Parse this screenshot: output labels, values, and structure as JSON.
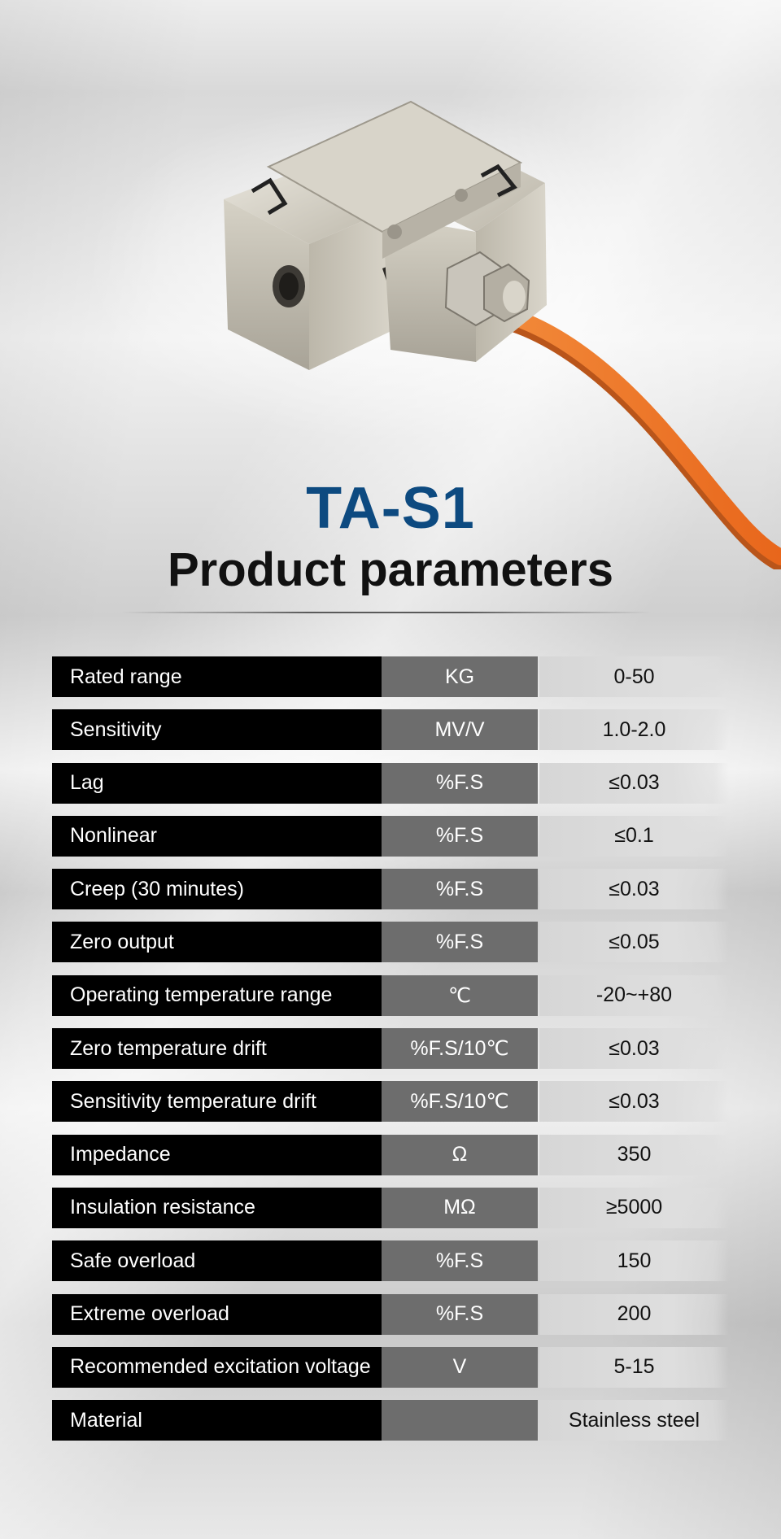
{
  "header": {
    "model": "TA-S1",
    "title": "Product parameters"
  },
  "colors": {
    "model_text": "#0d4a80",
    "name_cell_bg": "#000000",
    "unit_cell_bg": "#6d6d6d",
    "cable": "#f07a28"
  },
  "image": {
    "icon": "s-type-load-cell-icon"
  },
  "parameters": [
    {
      "name": "Rated range",
      "unit": "KG",
      "value": "0-50"
    },
    {
      "name": "Sensitivity",
      "unit": "MV/V",
      "value": "1.0-2.0"
    },
    {
      "name": "Lag",
      "unit": "%F.S",
      "value": "≤0.03"
    },
    {
      "name": "Nonlinear",
      "unit": "%F.S",
      "value": "≤0.1"
    },
    {
      "name": "Creep (30 minutes)",
      "unit": "%F.S",
      "value": "≤0.03"
    },
    {
      "name": "Zero output",
      "unit": "%F.S",
      "value": "≤0.05"
    },
    {
      "name": "Operating temperature range",
      "unit": "℃",
      "value": "-20~+80"
    },
    {
      "name": "Zero temperature drift",
      "unit": "%F.S/10℃",
      "value": "≤0.03"
    },
    {
      "name": "Sensitivity temperature drift",
      "unit": "%F.S/10℃",
      "value": "≤0.03"
    },
    {
      "name": "Impedance",
      "unit": "Ω",
      "value": "350"
    },
    {
      "name": "Insulation resistance",
      "unit": "MΩ",
      "value": "≥5000"
    },
    {
      "name": "Safe overload",
      "unit": "%F.S",
      "value": "150"
    },
    {
      "name": "Extreme overload",
      "unit": "%F.S",
      "value": "200"
    },
    {
      "name": "Recommended excitation voltage",
      "unit": "V",
      "value": "5-15"
    },
    {
      "name": "Material",
      "unit": "",
      "value": "Stainless steel"
    }
  ]
}
